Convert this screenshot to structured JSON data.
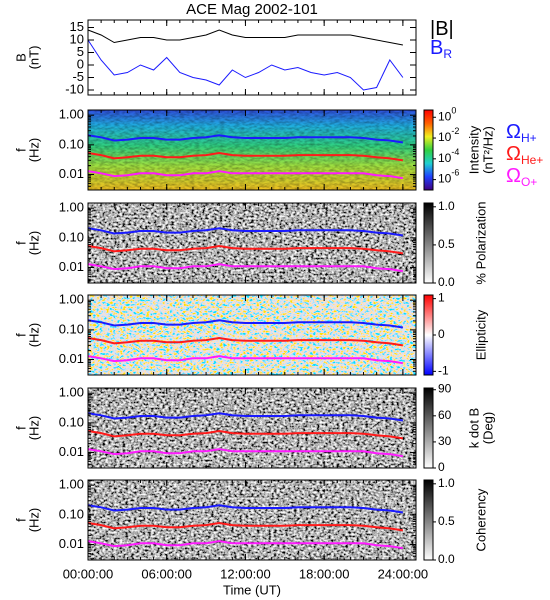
{
  "chart_data": [
    {
      "type": "line",
      "title": "ACE Mag 2002-101",
      "ylabel": [
        "B",
        "(nT)"
      ],
      "xlim": [
        0,
        25
      ],
      "ylim": [
        -12,
        18
      ],
      "yticks": [
        -10,
        -5,
        0,
        5,
        10,
        15
      ],
      "x": [
        0,
        1,
        2,
        3,
        4,
        5,
        6,
        7,
        8,
        9,
        10,
        11,
        12,
        13,
        14,
        15,
        16,
        17,
        18,
        19,
        20,
        21,
        22,
        23,
        24
      ],
      "series": [
        {
          "name": "|B|",
          "color": "#000000",
          "values": [
            14,
            12,
            9,
            10,
            11,
            11,
            10,
            10,
            11,
            12,
            14,
            12,
            11,
            11,
            11,
            11,
            12,
            12,
            12,
            12,
            12,
            11,
            10,
            9,
            8
          ]
        },
        {
          "name": "B",
          "name_sub": "R",
          "color": "#1a1aff",
          "values": [
            10,
            2,
            -4,
            -3,
            0,
            -2,
            3,
            -3,
            -5,
            -6,
            -8,
            -2,
            -5,
            -3,
            0,
            -2,
            -1,
            -3,
            -4,
            -3,
            -5,
            -10,
            -9,
            2,
            -5
          ]
        }
      ]
    },
    {
      "type": "spectrogram",
      "ylabel": [
        "f",
        "(Hz)"
      ],
      "log_y": true,
      "ylim": [
        0.003,
        1.5
      ],
      "yticks": [
        {
          "value": 1,
          "label": "1.00"
        },
        {
          "value": 0.1,
          "label": "0.10"
        },
        {
          "value": 0.01,
          "label": "0.01"
        }
      ],
      "colorbar": {
        "label": [
          "Intensity",
          "(nT²/Hz)"
        ],
        "log": true,
        "lim": [
          1e-07,
          5
        ],
        "colors": [
          "#400080",
          "#2040ff",
          "#20d0d0",
          "#30d040",
          "#f0f020",
          "#ff6000",
          "#ff0000"
        ],
        "ticks": [
          {
            "value": 1,
            "label": "10",
            "exponent": "0"
          },
          {
            "value": 0.01,
            "label": "10",
            "exponent": "-2"
          },
          {
            "value": 0.0001,
            "label": "10",
            "exponent": "-4"
          },
          {
            "value": 1e-06,
            "label": "10",
            "exponent": "-6"
          }
        ]
      },
      "x": [
        0,
        1,
        2,
        3,
        4,
        5,
        6,
        7,
        8,
        9,
        10,
        11,
        12,
        13,
        14,
        15,
        16,
        17,
        18,
        19,
        20,
        21,
        22,
        23,
        24
      ],
      "series": [
        {
          "name": "Ω",
          "name_sub": "H+",
          "color": "#1a1aff",
          "values": [
            0.21,
            0.18,
            0.14,
            0.15,
            0.17,
            0.17,
            0.15,
            0.15,
            0.17,
            0.18,
            0.21,
            0.18,
            0.17,
            0.17,
            0.17,
            0.17,
            0.18,
            0.18,
            0.18,
            0.18,
            0.18,
            0.17,
            0.15,
            0.14,
            0.12
          ]
        },
        {
          "name": "Ω",
          "name_sub": "He+",
          "color": "#ff1a1a",
          "values": [
            0.053,
            0.045,
            0.035,
            0.038,
            0.043,
            0.043,
            0.038,
            0.038,
            0.043,
            0.045,
            0.053,
            0.045,
            0.043,
            0.043,
            0.043,
            0.043,
            0.045,
            0.045,
            0.045,
            0.045,
            0.045,
            0.043,
            0.038,
            0.035,
            0.03
          ]
        },
        {
          "name": "Ω",
          "name_sub": "O+",
          "color": "#ff1aff",
          "values": [
            0.013,
            0.011,
            0.0088,
            0.0094,
            0.011,
            0.011,
            0.0094,
            0.0094,
            0.011,
            0.011,
            0.013,
            0.011,
            0.011,
            0.011,
            0.011,
            0.011,
            0.011,
            0.011,
            0.011,
            0.011,
            0.011,
            0.011,
            0.0094,
            0.0088,
            0.0075
          ]
        }
      ]
    },
    {
      "type": "spectrogram",
      "ylabel": [
        "f",
        "(Hz)"
      ],
      "log_y": true,
      "ylim": [
        0.003,
        1.5
      ],
      "yticks": [
        {
          "value": 1,
          "label": "1.00"
        },
        {
          "value": 0.1,
          "label": "0.10"
        },
        {
          "value": 0.01,
          "label": "0.01"
        }
      ],
      "colorbar": {
        "label": [
          "% Polarization"
        ],
        "lim": [
          0,
          1.05
        ],
        "colors": [
          "#ffffff",
          "#000000"
        ],
        "ticks": [
          {
            "value": 0,
            "label": "0.0"
          },
          {
            "value": 0.5,
            "label": "0.5"
          },
          {
            "value": 1,
            "label": "1.0"
          }
        ]
      }
    },
    {
      "type": "spectrogram",
      "ylabel": [
        "f",
        "(Hz)"
      ],
      "log_y": true,
      "ylim": [
        0.003,
        1.5
      ],
      "yticks": [
        {
          "value": 1,
          "label": "1.00"
        },
        {
          "value": 0.1,
          "label": "0.10"
        },
        {
          "value": 0.01,
          "label": "0.01"
        }
      ],
      "colorbar": {
        "label": [
          "Ellipticity"
        ],
        "lim": [
          -1.1,
          1.1
        ],
        "colors": [
          "#0000ff",
          "#ffffff",
          "#ff0000"
        ],
        "ticks": [
          -1,
          0,
          1
        ]
      }
    },
    {
      "type": "spectrogram",
      "ylabel": [
        "f",
        "(Hz)"
      ],
      "log_y": true,
      "ylim": [
        0.003,
        1.5
      ],
      "yticks": [
        {
          "value": 1,
          "label": "1.00"
        },
        {
          "value": 0.1,
          "label": "0.10"
        },
        {
          "value": 0.01,
          "label": "0.01"
        }
      ],
      "colorbar": {
        "label": [
          "k dot B",
          "(Deg)"
        ],
        "lim": [
          0,
          92
        ],
        "colors": [
          "#ffffff",
          "#000000"
        ],
        "ticks": [
          0,
          30,
          60,
          90
        ]
      }
    },
    {
      "type": "spectrogram",
      "ylabel": [
        "f",
        "(Hz)"
      ],
      "log_y": true,
      "ylim": [
        0.003,
        1.5
      ],
      "yticks": [
        {
          "value": 1,
          "label": "1.00"
        },
        {
          "value": 0.1,
          "label": "0.10"
        },
        {
          "value": 0.01,
          "label": "0.01"
        }
      ],
      "colorbar": {
        "label": [
          "Coherency"
        ],
        "lim": [
          0,
          1.05
        ],
        "colors": [
          "#ffffff",
          "#000000"
        ],
        "ticks": [
          {
            "value": 0,
            "label": "0.0"
          },
          {
            "value": 0.5,
            "label": "0.5"
          },
          {
            "value": 1,
            "label": "1.0"
          }
        ]
      },
      "xlabel": "Time (UT)",
      "xticks": [
        {
          "value": 0,
          "label": "00:00:00"
        },
        {
          "value": 6,
          "label": "06:00:00"
        },
        {
          "value": 12,
          "label": "12:00:00"
        },
        {
          "value": 18,
          "label": "18:00:00"
        },
        {
          "value": 24,
          "label": "24:00:00"
        }
      ]
    }
  ]
}
